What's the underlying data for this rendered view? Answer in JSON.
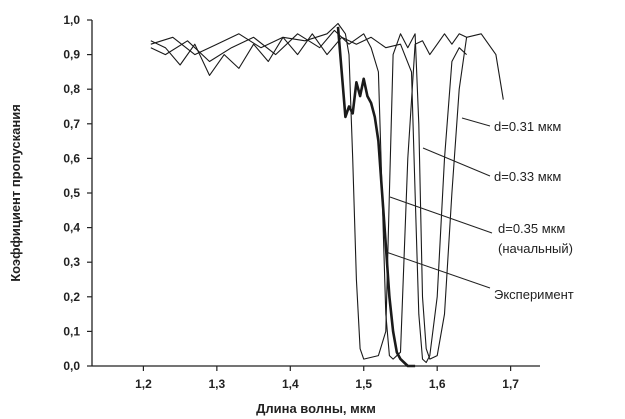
{
  "chart_data": {
    "type": "line",
    "xlabel": "Длина волны, мкм",
    "ylabel": "Коэффициент пропускания",
    "xlim": [
      1.13,
      1.74
    ],
    "ylim": [
      0.0,
      1.0
    ],
    "xticks": [
      1.2,
      1.3,
      1.4,
      1.5,
      1.6,
      1.7
    ],
    "xtick_labels": [
      "1,2",
      "1,3",
      "1,4",
      "1,5",
      "1,6",
      "1,7"
    ],
    "yticks": [
      0.0,
      0.1,
      0.2,
      0.3,
      0.4,
      0.5,
      0.6,
      0.7,
      0.8,
      0.9,
      1.0
    ],
    "ytick_labels": [
      "0,0",
      "0,1",
      "0,2",
      "0,3",
      "0,4",
      "0,5",
      "0,6",
      "0,7",
      "0,8",
      "0,9",
      "1,0"
    ],
    "grid": false,
    "series": [
      {
        "name": "d=0.31 мкм",
        "x": [
          1.21,
          1.24,
          1.27,
          1.3,
          1.33,
          1.36,
          1.39,
          1.42,
          1.45,
          1.465,
          1.475,
          1.48,
          1.485,
          1.49,
          1.495,
          1.5,
          1.52,
          1.53,
          1.535,
          1.54,
          1.55,
          1.56,
          1.57,
          1.575,
          1.58,
          1.585,
          1.59,
          1.6,
          1.61,
          1.62,
          1.63,
          1.64
        ],
        "y": [
          0.93,
          0.95,
          0.9,
          0.93,
          0.96,
          0.92,
          0.95,
          0.94,
          0.96,
          0.99,
          0.96,
          0.9,
          0.6,
          0.25,
          0.05,
          0.02,
          0.03,
          0.1,
          0.5,
          0.9,
          0.96,
          0.92,
          0.96,
          0.7,
          0.2,
          0.05,
          0.02,
          0.03,
          0.15,
          0.5,
          0.8,
          0.95
        ]
      },
      {
        "name": "d=0.33 мкм",
        "x": [
          1.21,
          1.23,
          1.26,
          1.29,
          1.32,
          1.35,
          1.38,
          1.41,
          1.44,
          1.46,
          1.48,
          1.5,
          1.51,
          1.52,
          1.525,
          1.53,
          1.535,
          1.54,
          1.55,
          1.56,
          1.57,
          1.58,
          1.59,
          1.6,
          1.61,
          1.62,
          1.63,
          1.64,
          1.66,
          1.68,
          1.69
        ],
        "y": [
          0.92,
          0.9,
          0.94,
          0.88,
          0.92,
          0.95,
          0.9,
          0.96,
          0.92,
          0.97,
          0.93,
          0.96,
          0.92,
          0.85,
          0.5,
          0.15,
          0.03,
          0.02,
          0.04,
          0.6,
          0.93,
          0.94,
          0.9,
          0.93,
          0.96,
          0.93,
          0.96,
          0.95,
          0.96,
          0.9,
          0.77
        ]
      },
      {
        "name": "d=0.35 мкм (начальный)",
        "x": [
          1.21,
          1.23,
          1.25,
          1.27,
          1.29,
          1.31,
          1.33,
          1.35,
          1.37,
          1.39,
          1.41,
          1.43,
          1.45,
          1.47,
          1.49,
          1.51,
          1.53,
          1.55,
          1.565,
          1.57,
          1.575,
          1.58,
          1.585,
          1.59,
          1.6,
          1.61,
          1.62,
          1.63,
          1.64
        ],
        "y": [
          0.94,
          0.92,
          0.87,
          0.93,
          0.84,
          0.9,
          0.86,
          0.93,
          0.88,
          0.95,
          0.9,
          0.96,
          0.9,
          0.95,
          0.93,
          0.95,
          0.92,
          0.93,
          0.85,
          0.5,
          0.15,
          0.02,
          0.01,
          0.03,
          0.2,
          0.6,
          0.88,
          0.92,
          0.9
        ]
      },
      {
        "name": "Эксперимент",
        "x": [
          1.465,
          1.47,
          1.475,
          1.48,
          1.485,
          1.49,
          1.495,
          1.5,
          1.505,
          1.51,
          1.515,
          1.52,
          1.525,
          1.53,
          1.535,
          1.54,
          1.545,
          1.55,
          1.555,
          1.56,
          1.57
        ],
        "y": [
          0.98,
          0.85,
          0.72,
          0.75,
          0.73,
          0.82,
          0.78,
          0.83,
          0.78,
          0.76,
          0.72,
          0.65,
          0.5,
          0.35,
          0.2,
          0.1,
          0.04,
          0.02,
          0.01,
          0.0,
          0.0
        ]
      }
    ],
    "annotations": [
      {
        "text": "d=0.31 мкм",
        "series": 0
      },
      {
        "text": "d=0.33 мкм",
        "series": 1
      },
      {
        "text_line1": "d=0.35 мкм",
        "text_line2": "(начальный)",
        "series": 2
      },
      {
        "text": "Эксперимент",
        "series": 3
      }
    ]
  }
}
